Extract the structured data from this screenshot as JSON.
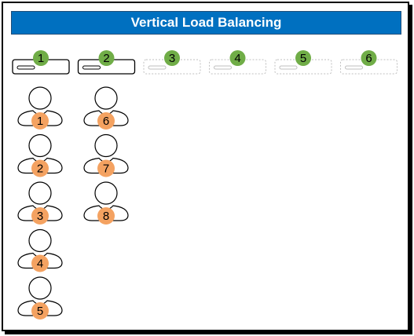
{
  "title": "Vertical Load Balancing",
  "colors": {
    "title_bg": "#0070c0",
    "server_badge": "#70ad47",
    "user_badge": "#f4a261",
    "active_stroke": "#000000",
    "inactive_stroke": "#bfbfbf"
  },
  "servers": [
    {
      "label": "1",
      "active": true
    },
    {
      "label": "2",
      "active": true
    },
    {
      "label": "3",
      "active": false
    },
    {
      "label": "4",
      "active": false
    },
    {
      "label": "5",
      "active": false
    },
    {
      "label": "6",
      "active": false
    }
  ],
  "user_columns": [
    {
      "server": "1",
      "users": [
        "1",
        "2",
        "3",
        "4",
        "5"
      ]
    },
    {
      "server": "2",
      "users": [
        "6",
        "7",
        "8"
      ]
    }
  ]
}
